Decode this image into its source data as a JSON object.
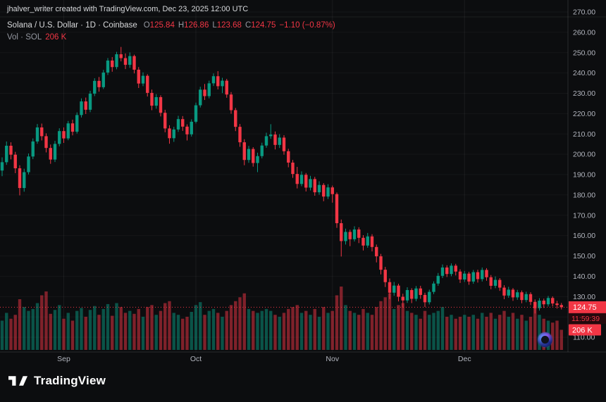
{
  "app": {
    "attribution": "jhalver_writer created with TradingView.com, Dec 23, 2025 12:00 UTC",
    "brand": "TradingView"
  },
  "legend": {
    "symbol_line": "Solana / U.S. Dollar · 1D · Coinbase",
    "o_label": "O",
    "o_value": "125.84",
    "h_label": "H",
    "h_value": "126.86",
    "l_label": "L",
    "l_value": "123.68",
    "c_label": "C",
    "c_value": "124.75",
    "change": "−1.10 (−0.87%)",
    "vol_label": "Vol · SOL",
    "vol_value": "206 K"
  },
  "axis": {
    "price_ticks": [
      "270.00",
      "260.00",
      "250.00",
      "240.00",
      "230.00",
      "220.00",
      "210.00",
      "200.00",
      "190.00",
      "180.00",
      "170.00",
      "160.00",
      "150.00",
      "140.00",
      "130.00",
      "120.00",
      "110.00"
    ]
  },
  "price_line": {
    "value": "124.75",
    "countdown": "11:59:39"
  },
  "volume_badge": "206 K",
  "colors": {
    "up": "#089981",
    "down": "#f23645",
    "bg": "#0c0d0f",
    "axis_text": "#b2b5be",
    "grid": "rgba(255,255,255,0.05)",
    "separator": "rgba(255,255,255,0.12)",
    "countdown_bg": "#24090d"
  },
  "chart_data": {
    "type": "candlestick",
    "title": "Solana / U.S. Dollar · 1D · Coinbase",
    "symbol": "SOL/USD",
    "exchange": "Coinbase",
    "interval": "1D",
    "ylim": [
      110,
      270
    ],
    "y_tick_step": 10,
    "last": {
      "open": 125.84,
      "high": 126.86,
      "low": 123.68,
      "close": 124.75,
      "change": -1.1,
      "change_pct": -0.87,
      "volume_k": 206
    },
    "month_ticks": [
      {
        "label": "Sep",
        "index": 14
      },
      {
        "label": "Oct",
        "index": 44
      },
      {
        "label": "Nov",
        "index": 75
      },
      {
        "label": "Dec",
        "index": 105
      }
    ],
    "columns": [
      "open",
      "high",
      "low",
      "close",
      "volume_k"
    ],
    "ohlcv": [
      [
        192.0,
        198.5,
        189.2,
        196.1,
        300
      ],
      [
        196.1,
        206.3,
        194.8,
        204.2,
        380
      ],
      [
        204.2,
        205.9,
        197.5,
        199.8,
        320
      ],
      [
        199.8,
        201.2,
        190.7,
        193.1,
        360
      ],
      [
        193.1,
        194.6,
        179.8,
        183.4,
        520
      ],
      [
        183.4,
        192.9,
        181.6,
        191.2,
        440
      ],
      [
        191.2,
        200.4,
        190.1,
        198.9,
        400
      ],
      [
        198.9,
        207.8,
        197.6,
        206.3,
        420
      ],
      [
        206.3,
        214.9,
        205.2,
        213.2,
        480
      ],
      [
        213.2,
        215.1,
        206.8,
        208.9,
        560
      ],
      [
        208.9,
        210.3,
        200.9,
        203.1,
        600
      ],
      [
        203.1,
        204.8,
        195.3,
        197.4,
        370
      ],
      [
        197.4,
        206.6,
        196.2,
        205.1,
        410
      ],
      [
        205.1,
        212.8,
        203.9,
        211.4,
        460
      ],
      [
        211.4,
        213.2,
        205.6,
        207.8,
        320
      ],
      [
        207.8,
        216.4,
        206.9,
        215.2,
        380
      ],
      [
        215.2,
        217.0,
        209.3,
        211.1,
        300
      ],
      [
        211.1,
        220.6,
        210.2,
        219.3,
        400
      ],
      [
        219.3,
        227.5,
        218.1,
        226.0,
        430
      ],
      [
        226.0,
        227.9,
        219.8,
        221.9,
        340
      ],
      [
        221.9,
        231.2,
        220.7,
        229.8,
        410
      ],
      [
        229.8,
        237.4,
        228.6,
        236.1,
        450
      ],
      [
        236.1,
        238.0,
        230.8,
        233.0,
        360
      ],
      [
        233.0,
        241.5,
        232.1,
        240.2,
        420
      ],
      [
        240.2,
        247.3,
        239.0,
        246.1,
        470
      ],
      [
        246.1,
        247.8,
        240.6,
        242.9,
        350
      ],
      [
        242.9,
        250.4,
        241.8,
        249.2,
        480
      ],
      [
        249.2,
        252.8,
        245.7,
        247.3,
        440
      ],
      [
        247.3,
        249.6,
        241.9,
        244.0,
        380
      ],
      [
        244.0,
        250.1,
        242.5,
        248.3,
        400
      ],
      [
        248.3,
        249.0,
        239.8,
        241.6,
        370
      ],
      [
        241.6,
        242.9,
        232.6,
        234.8,
        420
      ],
      [
        234.8,
        240.3,
        233.5,
        238.6,
        340
      ],
      [
        238.6,
        239.4,
        228.4,
        230.2,
        440
      ],
      [
        230.2,
        231.8,
        221.7,
        223.9,
        460
      ],
      [
        223.9,
        229.6,
        222.4,
        228.1,
        360
      ],
      [
        228.1,
        229.0,
        218.6,
        220.4,
        400
      ],
      [
        220.4,
        221.9,
        210.8,
        212.7,
        480
      ],
      [
        212.7,
        214.3,
        205.2,
        207.9,
        500
      ],
      [
        207.9,
        213.5,
        206.1,
        212.2,
        380
      ],
      [
        212.2,
        218.9,
        211.0,
        217.3,
        360
      ],
      [
        217.3,
        218.8,
        211.5,
        213.6,
        320
      ],
      [
        213.6,
        214.7,
        206.8,
        209.8,
        340
      ],
      [
        209.8,
        217.2,
        208.7,
        216.0,
        390
      ],
      [
        216.0,
        225.4,
        215.2,
        224.1,
        460
      ],
      [
        224.1,
        233.2,
        223.0,
        231.8,
        490
      ],
      [
        231.8,
        234.6,
        226.7,
        228.6,
        360
      ],
      [
        228.6,
        236.2,
        227.5,
        234.9,
        400
      ],
      [
        234.9,
        239.8,
        233.6,
        238.4,
        420
      ],
      [
        238.4,
        240.9,
        231.9,
        233.5,
        380
      ],
      [
        233.5,
        237.6,
        230.1,
        236.2,
        340
      ],
      [
        236.2,
        237.1,
        227.8,
        229.4,
        400
      ],
      [
        229.4,
        230.6,
        219.9,
        221.7,
        460
      ],
      [
        221.7,
        222.8,
        211.4,
        213.5,
        500
      ],
      [
        213.5,
        214.9,
        203.7,
        205.9,
        540
      ],
      [
        205.9,
        207.4,
        194.6,
        197.2,
        580
      ],
      [
        197.2,
        204.1,
        195.8,
        202.6,
        420
      ],
      [
        202.6,
        203.5,
        193.9,
        195.7,
        400
      ],
      [
        195.7,
        200.8,
        191.2,
        199.1,
        380
      ],
      [
        199.1,
        205.7,
        198.0,
        204.3,
        400
      ],
      [
        204.3,
        210.6,
        203.2,
        208.9,
        420
      ],
      [
        208.9,
        214.8,
        207.6,
        209.7,
        400
      ],
      [
        209.7,
        211.2,
        202.4,
        204.6,
        360
      ],
      [
        204.6,
        209.9,
        203.1,
        208.2,
        340
      ],
      [
        208.2,
        209.4,
        199.8,
        201.5,
        380
      ],
      [
        201.5,
        202.7,
        193.6,
        195.9,
        420
      ],
      [
        195.9,
        197.2,
        188.4,
        190.3,
        440
      ],
      [
        190.3,
        193.8,
        183.2,
        185.4,
        460
      ],
      [
        185.4,
        191.6,
        184.3,
        189.9,
        380
      ],
      [
        189.9,
        190.8,
        181.7,
        183.6,
        400
      ],
      [
        183.6,
        189.4,
        182.2,
        187.8,
        360
      ],
      [
        187.8,
        188.9,
        179.6,
        181.3,
        420
      ],
      [
        181.3,
        186.7,
        180.1,
        184.9,
        340
      ],
      [
        184.9,
        185.8,
        176.9,
        179.2,
        440
      ],
      [
        179.2,
        185.3,
        178.0,
        183.7,
        380
      ],
      [
        183.7,
        184.6,
        176.2,
        180.4,
        400
      ],
      [
        180.4,
        181.2,
        163.8,
        166.1,
        560
      ],
      [
        166.1,
        167.9,
        149.7,
        157.3,
        650
      ],
      [
        157.3,
        163.4,
        155.6,
        161.8,
        460
      ],
      [
        161.8,
        162.9,
        154.8,
        158.2,
        400
      ],
      [
        158.2,
        164.6,
        157.1,
        163.0,
        380
      ],
      [
        163.0,
        164.1,
        156.3,
        158.9,
        360
      ],
      [
        158.9,
        160.2,
        152.7,
        155.1,
        420
      ],
      [
        155.1,
        161.3,
        154.0,
        159.6,
        380
      ],
      [
        159.6,
        160.7,
        152.2,
        154.4,
        360
      ],
      [
        154.4,
        155.6,
        146.8,
        149.8,
        440
      ],
      [
        149.8,
        151.0,
        140.9,
        143.2,
        500
      ],
      [
        143.2,
        144.6,
        134.7,
        137.1,
        540
      ],
      [
        137.1,
        138.9,
        128.8,
        131.9,
        580
      ],
      [
        131.9,
        137.2,
        130.4,
        135.4,
        420
      ],
      [
        135.4,
        136.3,
        127.6,
        129.9,
        460
      ],
      [
        129.9,
        131.4,
        124.6,
        128.1,
        480
      ],
      [
        128.1,
        134.6,
        126.9,
        133.2,
        400
      ],
      [
        133.2,
        134.1,
        126.8,
        128.9,
        380
      ],
      [
        128.9,
        135.2,
        127.7,
        134.0,
        360
      ],
      [
        134.0,
        135.3,
        128.9,
        130.8,
        320
      ],
      [
        130.8,
        131.9,
        124.9,
        127.2,
        400
      ],
      [
        127.2,
        133.4,
        126.1,
        132.3,
        360
      ],
      [
        132.3,
        137.5,
        131.2,
        136.4,
        380
      ],
      [
        136.4,
        141.6,
        135.3,
        140.2,
        400
      ],
      [
        140.2,
        145.8,
        139.1,
        144.3,
        440
      ],
      [
        144.3,
        145.4,
        139.6,
        141.1,
        340
      ],
      [
        141.1,
        146.3,
        140.0,
        145.2,
        360
      ],
      [
        145.2,
        146.1,
        140.4,
        142.3,
        320
      ],
      [
        142.3,
        143.4,
        136.7,
        138.4,
        340
      ],
      [
        138.4,
        142.6,
        137.2,
        141.3,
        360
      ],
      [
        141.3,
        142.2,
        135.8,
        137.4,
        340
      ],
      [
        137.4,
        143.1,
        136.3,
        142.0,
        360
      ],
      [
        142.0,
        143.2,
        136.9,
        138.6,
        320
      ],
      [
        138.6,
        144.3,
        137.4,
        143.1,
        380
      ],
      [
        143.1,
        144.0,
        137.8,
        139.5,
        340
      ],
      [
        139.5,
        140.6,
        133.6,
        135.3,
        380
      ],
      [
        135.3,
        139.9,
        134.1,
        138.2,
        320
      ],
      [
        138.2,
        139.1,
        132.8,
        134.4,
        360
      ],
      [
        134.4,
        135.6,
        128.7,
        130.5,
        400
      ],
      [
        130.5,
        134.8,
        129.4,
        133.4,
        340
      ],
      [
        133.4,
        134.2,
        127.9,
        129.6,
        380
      ],
      [
        129.6,
        133.3,
        128.4,
        132.1,
        320
      ],
      [
        132.1,
        133.0,
        126.7,
        128.3,
        360
      ],
      [
        128.3,
        132.4,
        127.2,
        131.2,
        300
      ],
      [
        131.2,
        132.1,
        125.8,
        127.4,
        340
      ],
      [
        127.4,
        128.6,
        121.7,
        124.3,
        460
      ],
      [
        124.3,
        129.2,
        123.1,
        128.0,
        360
      ],
      [
        128.0,
        129.0,
        124.4,
        126.2,
        320
      ],
      [
        126.2,
        130.3,
        125.1,
        129.3,
        300
      ],
      [
        129.3,
        130.1,
        125.2,
        126.6,
        280
      ],
      [
        126.6,
        127.9,
        124.1,
        125.84,
        300
      ],
      [
        125.84,
        126.86,
        123.68,
        124.75,
        206
      ]
    ]
  }
}
